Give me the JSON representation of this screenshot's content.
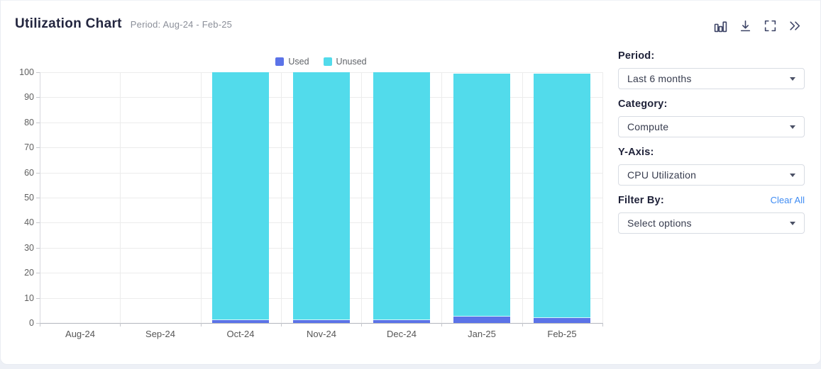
{
  "header": {
    "title": "Utilization Chart",
    "subtitle": "Period: Aug-24 - Feb-25",
    "toolbar_icons": [
      "bar-chart-icon",
      "download-icon",
      "fullscreen-icon",
      "collapse-panel-icon"
    ]
  },
  "chart_data": {
    "type": "bar",
    "stacked": true,
    "categories": [
      "Aug-24",
      "Sep-24",
      "Oct-24",
      "Nov-24",
      "Dec-24",
      "Jan-25",
      "Feb-25"
    ],
    "series": [
      {
        "name": "Used",
        "color": "#5b73e8",
        "values": [
          0,
          0,
          1,
          1,
          1,
          2.5,
          2
        ]
      },
      {
        "name": "Unused",
        "color": "#52dbeb",
        "values": [
          0,
          0,
          99,
          99,
          99,
          97,
          97.5
        ]
      }
    ],
    "ylim": [
      0,
      100
    ],
    "ytick_step": 10,
    "grid": true,
    "legend_position": "top",
    "xlabel": "",
    "ylabel": ""
  },
  "controls": {
    "fields": [
      {
        "label": "Period:",
        "value": "Last 6 months"
      },
      {
        "label": "Category:",
        "value": "Compute"
      },
      {
        "label": "Y-Axis:",
        "value": "CPU Utilization"
      },
      {
        "label": "Filter By:",
        "value": "Select options",
        "action_label": "Clear All"
      }
    ]
  },
  "colors": {
    "used": "#5b73e8",
    "unused": "#52dbeb",
    "link": "#3f8cf3"
  }
}
